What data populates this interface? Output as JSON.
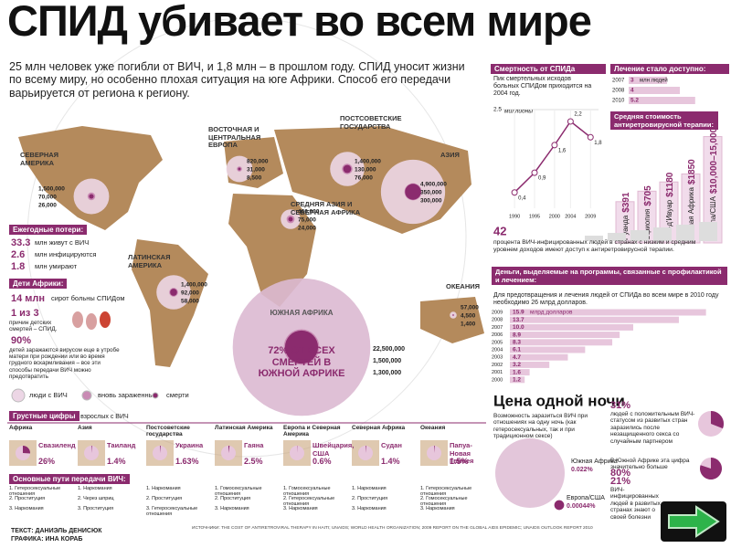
{
  "header": {
    "title": "СПИД убивает во всем мире",
    "intro": "25 млн человек уже погибли от ВИЧ, и 1,8 млн – в прошлом году. СПИД уносит жизни по всему миру, но особенно плохая ситуация на юге Африки. Способ его передачи варьируется от региона к региону."
  },
  "map": {
    "regions": [
      {
        "name": "Северная Америка",
        "values": [
          1500000,
          70000,
          26000
        ],
        "value_labels": [
          "1,500,000",
          "70,000",
          "26,000"
        ]
      },
      {
        "name": "Восточная и центральная Европа",
        "values": [
          820000,
          31000,
          8500
        ],
        "value_labels": [
          "820,000",
          "31,000",
          "8,500"
        ]
      },
      {
        "name": "Постсоветские государства",
        "values": [
          1400000,
          130000,
          76000
        ],
        "value_labels": [
          "1,400,000",
          "130,000",
          "76,000"
        ]
      },
      {
        "name": "Азия",
        "values": [
          4900000,
          350000,
          300000
        ],
        "value_labels": [
          "4,900,000",
          "350,000",
          "300,000"
        ]
      },
      {
        "name": "Средняя Азия и Северная Африка",
        "values": [
          460000,
          75000,
          24000
        ],
        "value_labels": [
          "460,000",
          "75,000",
          "24,000"
        ]
      },
      {
        "name": "Латинская Америка",
        "values": [
          1400000,
          92000,
          58000
        ],
        "value_labels": [
          "1,400,000",
          "92,000",
          "58,000"
        ]
      },
      {
        "name": "Океания",
        "values": [
          57000,
          4500,
          1400
        ],
        "value_labels": [
          "57,000",
          "4,500",
          "1,400"
        ]
      },
      {
        "name": "Южная Африка",
        "values": [
          22500000,
          1500000,
          1300000
        ],
        "value_labels": [
          "22,500,000",
          "1,500,000",
          "1,300,000"
        ]
      }
    ],
    "south_africa_note": "72% от всех смертей в Южной Африке",
    "legend": [
      "люди с ВИЧ",
      "вновь зараженные",
      "смерти"
    ]
  },
  "annual": {
    "title": "Ежегодные потери:",
    "items": [
      {
        "value": 33.3,
        "text": "млн живут с ВИЧ"
      },
      {
        "value": 2.6,
        "text": "млн инфицируются"
      },
      {
        "value": 1.8,
        "text": "млн умирают"
      }
    ]
  },
  "children": {
    "title": "Дети Африки:",
    "orphans": "14 млн",
    "orphans_text": "сирот больны СПИДом",
    "ratio": "1 из 3",
    "ratio_text": "причин детских смертей – СПИД.",
    "share": "90%",
    "share_text": "детей заражаются вирусом еще в утробе матери при рождении или во время грудного вскармливания – все эти способы передачи ВИЧ можно предотвратить"
  },
  "mortality": {
    "title": "Смертность от СПИДа",
    "subtitle": "Пик смертельных исходов больных СПИДом приходится на 2004 год.",
    "y_label": "миллионы",
    "x": [
      1990,
      1995,
      2000,
      2004,
      2009
    ],
    "values": [
      0.4,
      0.9,
      1.6,
      2.2,
      1.8
    ],
    "value_labels": [
      "0,4",
      "0,9",
      "1,6",
      "2,2",
      "1,8"
    ],
    "xlim": [
      1987,
      2011
    ],
    "xticks": [
      1990,
      1995,
      2000,
      2004,
      2009
    ],
    "ylim": [
      0,
      2.5
    ],
    "yticks": [
      2.5
    ],
    "color": "#8b2b6e"
  },
  "treatment": {
    "title": "Лечение стало доступно:",
    "years": [
      2007,
      2008,
      2010
    ],
    "values": [
      3,
      4,
      5.2
    ],
    "unit": "млн людей"
  },
  "cost": {
    "title": "Средняя стоимость антиретровирусной терапии:",
    "items": [
      {
        "country": "Руанда",
        "value": 391,
        "value_label": "$391"
      },
      {
        "country": "Эфиопия",
        "value": 705,
        "value_label": "$705"
      },
      {
        "country": "Кот-д'Ивуар",
        "value": 1180,
        "value_label": "$1180"
      },
      {
        "country": "Южная Африка",
        "value": 1850,
        "value_label": "$1850"
      },
      {
        "country": "Европа/США",
        "value": [
          10000,
          15000
        ],
        "value_label": "$10,000–15,000"
      }
    ]
  },
  "access": {
    "value": 42,
    "text": "процента ВИЧ-инфицированных людей в странах с низким и средним уровнем доходов имеют доступ к антиретровирусной терапии."
  },
  "funding": {
    "title": "Деньги, выделяемые на программы, связанные с профилактикой и лечением:",
    "note": "Для предотвращения и лечения людей от СПИДа во всем мире в 2010 году необходимо 26 млрд долларов.",
    "years": [
      2009,
      2008,
      2007,
      2006,
      2005,
      2004,
      2003,
      2002,
      2001,
      2000
    ],
    "values": [
      15.9,
      13.7,
      10.0,
      8.9,
      8.3,
      6.1,
      4.7,
      3.2,
      1.6,
      1.2
    ],
    "value_labels": [
      "15.9",
      "13.7",
      "10.0",
      "8.9",
      "8.3",
      "6.1",
      "4.7",
      "3.2",
      "1.6",
      "1.2"
    ],
    "unit": "млрд долларов"
  },
  "night": {
    "title": "Цена одной ночи",
    "chance_text": "Возможность заразиться ВИЧ при отношениях на одну ночь (как гетеросексуальных, так и при традиционном сексе)",
    "items": [
      {
        "region": "Южная Африка",
        "value": 0.022,
        "value_label": "0.022%"
      },
      {
        "region": "Европа/США",
        "value": 0.00044,
        "value_label": "0.00044%"
      }
    ],
    "facts": [
      {
        "value": 31,
        "label": "31%",
        "text": "людей с положительным ВИЧ-статусом из развитых стран заразились после незащищенного секса со случайным партнером"
      },
      {
        "value": 80,
        "label": "80%",
        "text": "В Южной Африке эта цифра значительно больше"
      },
      {
        "value": 21,
        "label": "21%",
        "text": "ВИЧ-инфицированных людей в развитых странах знают о своей болезни"
      }
    ]
  },
  "groups": {
    "title": "Грустные цифры",
    "subtitle": "% взрослых с ВИЧ",
    "items": [
      {
        "region": "Африка",
        "country": "Свазиленд",
        "value": 26,
        "value_label": "26%"
      },
      {
        "region": "Азия",
        "country": "Таиланд",
        "value": 1.4,
        "value_label": "1.4%"
      },
      {
        "region": "Постсоветские государства",
        "country": "Украина",
        "value": 1.63,
        "value_label": "1.63%"
      },
      {
        "region": "Латинская Америка",
        "country": "Гаяна",
        "value": 2.5,
        "value_label": "2.5%"
      },
      {
        "region": "Европа и Северная Америка",
        "country": "Швейцария, США",
        "value": 0.6,
        "value_label": "0.6%"
      },
      {
        "region": "Северная Африка",
        "country": "Судан",
        "value": 1.4,
        "value_label": "1.4%"
      },
      {
        "region": "Океания",
        "country": "Папуа-Новая Гвинея",
        "value": 1.5,
        "value_label": "1.5%"
      }
    ]
  },
  "transmission": {
    "title": "Основные пути передачи ВИЧ:",
    "columns": [
      [
        "1. Гетеросексуальные отношения",
        "2. Проституция",
        "3. Наркомания"
      ],
      [
        "1. Наркомания",
        "2. Через шприц",
        "3. Проституция"
      ],
      [
        "1. Наркомания",
        "2. Проституция",
        "3. Гетеросексуальные отношения"
      ],
      [
        "1. Гомосексуальные отношения",
        "2. Проституция",
        "3. Наркомания"
      ],
      [
        "1. Гомосексуальные отношения",
        "2. Гетеросексуальные отношения",
        "3. Наркомания"
      ],
      [
        "1. Наркомания",
        "2. Проституция",
        "3. Наркомания"
      ],
      [
        "1. Гетеросексуальные отношения",
        "2. Гомосексуальные отношения",
        "3. Наркомания"
      ]
    ]
  },
  "footer": {
    "credits": [
      "ТЕКСТ: ДАНИЭЛЬ ДЕНИСЮК",
      "ГРАФИКА: ИНА КОРАБ"
    ],
    "sources": "ИСТОЧНИКИ: THE COST OF ANTIRETROVIRAL THERAPY IN HAITI; UNAIDS; WORLD HEALTH ORGANIZATION; 2009 REPORT ON THE GLOBAL AIDS EPIDEMIC; UNAIDS OUTLOOK REPORT 2010"
  }
}
